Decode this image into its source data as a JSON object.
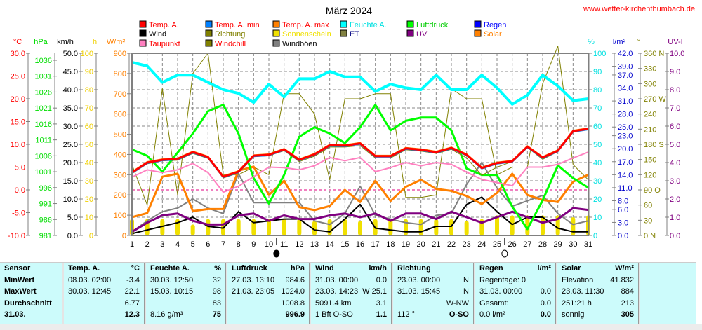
{
  "title": "März 2024",
  "site": "www.wetter-kirchenthumbach.de",
  "legend": [
    {
      "label": "Temp. A.",
      "color": "#ff0000",
      "text_color": "#ff0000"
    },
    {
      "label": "Temp. A. min",
      "color": "#0080ff",
      "text_color": "#ff0000"
    },
    {
      "label": "Temp. A. max",
      "color": "#ff8000",
      "text_color": "#ff0000"
    },
    {
      "label": "Feuchte A.",
      "color": "#00ffff",
      "text_color": "#00e0e0"
    },
    {
      "label": "Luftdruck",
      "color": "#00ff00",
      "text_color": "#00cc00"
    },
    {
      "label": "Regen",
      "color": "#0000ff",
      "text_color": "#0000ff"
    },
    {
      "label": "Wind",
      "color": "#000000",
      "text_color": "#000000"
    },
    {
      "label": "Richtung",
      "color": "#808000",
      "text_color": "#808000"
    },
    {
      "label": "Sonnenschein",
      "color": "#f0e000",
      "text_color": "#f0e000"
    },
    {
      "label": "ET",
      "color": "#808040",
      "text_color": "#000080"
    },
    {
      "label": "UV",
      "color": "#800080",
      "text_color": "#800080"
    },
    {
      "label": "Solar",
      "color": "#ff8000",
      "text_color": "#ff8000"
    },
    {
      "label": "Taupunkt",
      "color": "#ff80c0",
      "text_color": "#ff0000"
    },
    {
      "label": "Windchill",
      "color": "#808000",
      "text_color": "#ff0000"
    },
    {
      "label": "Windböen",
      "color": "#808080",
      "text_color": "#000000"
    }
  ],
  "axes": {
    "left": [
      {
        "unit": "°C",
        "color": "#ff0000",
        "ticks": [
          "30.0",
          "25.0",
          "20.0",
          "15.0",
          "10.0",
          "5.0",
          "0.0",
          "-5.0",
          "-10.0"
        ]
      },
      {
        "unit": "hPa",
        "color": "#00dd00",
        "ticks": [
          "1036",
          "1031",
          "1026",
          "1021",
          "1016",
          "1011",
          "1006",
          "1001",
          "996",
          "991",
          "986",
          "981"
        ]
      },
      {
        "unit": "km/h",
        "color": "#000000",
        "ticks": [
          "50.0",
          "45.0",
          "40.0",
          "35.0",
          "30.0",
          "25.0",
          "20.0",
          "15.0",
          "10.0",
          "5.0",
          "0.0"
        ]
      },
      {
        "unit": "h",
        "color": "#f0d000",
        "ticks": [
          "100",
          "90",
          "80",
          "70",
          "60",
          "50",
          "40",
          "30",
          "20",
          "10",
          "0"
        ]
      },
      {
        "unit": "W/m²",
        "color": "#ff8000",
        "ticks": [
          "900",
          "800",
          "700",
          "600",
          "500",
          "400",
          "300",
          "200",
          "100",
          "0"
        ]
      }
    ],
    "right": [
      {
        "unit": "%",
        "color": "#00e0e0",
        "ticks": [
          "100",
          "90",
          "80",
          "70",
          "60",
          "50",
          "40",
          "30",
          "20",
          "10",
          "0"
        ]
      },
      {
        "unit": "l/m²",
        "color": "#0000cc",
        "ticks": [
          "42.0",
          "39.0",
          "37.0",
          "34.0",
          "31.0",
          "28.0",
          "25.0",
          "23.0",
          "20.0",
          "17.0",
          "14.0",
          "11.0",
          "8.0",
          "6.0",
          "3.0",
          "0.0"
        ]
      },
      {
        "unit": "°",
        "color": "#808000",
        "ticks": [
          "360 N",
          "330",
          "300",
          "270 W",
          "240",
          "210",
          "180 S",
          "150",
          "120",
          "90  O",
          "60",
          "30",
          "0   N"
        ]
      },
      {
        "unit": "UV-I",
        "color": "#800080",
        "ticks": [
          "10.0",
          "9.0",
          "8.0",
          "7.0",
          "6.0",
          "5.0",
          "4.0",
          "3.0",
          "2.0",
          "1.0",
          "0.0"
        ]
      }
    ]
  },
  "chart_data": {
    "type": "line",
    "title": "März 2024",
    "x": [
      1,
      2,
      3,
      4,
      5,
      6,
      7,
      8,
      9,
      10,
      11,
      12,
      13,
      14,
      15,
      16,
      17,
      18,
      19,
      20,
      21,
      22,
      23,
      24,
      25,
      26,
      27,
      28,
      29,
      30,
      31
    ],
    "xlim": [
      1,
      31
    ],
    "grid": true,
    "moon_phases": [
      {
        "day": 10.5,
        "phase": "new"
      },
      {
        "day": 25.5,
        "phase": "full"
      }
    ],
    "series": [
      {
        "name": "Temp. A.",
        "unit": "°C",
        "color": "#ff0000",
        "width": 3,
        "values": [
          3.8,
          6.0,
          6.6,
          6.8,
          8.3,
          7.2,
          2.9,
          4.0,
          7.5,
          7.7,
          8.9,
          6.6,
          7.8,
          9.8,
          9.7,
          10.2,
          7.4,
          7.4,
          9.1,
          8.8,
          8.3,
          9.2,
          7.7,
          4.8,
          5.9,
          6.3,
          9.5,
          7.1,
          8.6,
          12.9,
          13.4
        ]
      },
      {
        "name": "Taupunkt",
        "unit": "°C",
        "color": "#ff80c0",
        "width": 2,
        "values": [
          2.8,
          4.4,
          3.8,
          4.4,
          5.8,
          3.8,
          -0.5,
          0.8,
          2.9,
          5.0,
          4.9,
          4.4,
          5.3,
          7.1,
          6.4,
          7.1,
          4.0,
          4.9,
          6.0,
          5.3,
          6.0,
          5.6,
          3.9,
          2.3,
          1.6,
          0.9,
          5.0,
          5.0,
          5.6,
          7.0,
          8.3
        ]
      },
      {
        "name": "Windchill",
        "unit": "°C",
        "color": "#808000",
        "width": 1,
        "values": [
          3.6,
          5.7,
          6.4,
          6.5,
          8.0,
          6.9,
          2.6,
          3.7,
          7.3,
          7.5,
          8.6,
          6.2,
          7.4,
          9.4,
          9.4,
          9.7,
          7.0,
          7.0,
          8.8,
          8.5,
          8.0,
          8.9,
          7.0,
          3.2,
          5.0,
          6.2,
          9.3,
          6.7,
          8.4,
          12.7,
          13.2
        ]
      },
      {
        "name": "Feuchte A.",
        "unit": "%",
        "color": "#00ffff",
        "width": 4,
        "values": [
          95,
          93,
          84,
          88,
          88,
          84,
          80,
          78,
          73,
          83,
          76,
          86,
          86,
          90,
          87,
          87,
          79,
          83,
          81,
          80,
          88,
          80,
          80,
          88,
          81,
          72,
          77,
          88,
          82,
          74,
          75
        ]
      },
      {
        "name": "Luftdruck",
        "unit": "hPa",
        "color": "#00ff00",
        "width": 3,
        "values": [
          1008,
          1006,
          1001,
          1007,
          1013,
          1020,
          1022,
          1013,
          999,
          991,
          1000,
          1012,
          1015,
          1013,
          1010,
          1015,
          1022,
          1014,
          1017,
          1018,
          1018,
          1014,
          1002,
          1000,
          1000,
          990,
          983,
          992,
          1003,
          999,
          996
        ]
      },
      {
        "name": "Solar",
        "unit": "W/m²",
        "color": "#ff8000",
        "width": 3,
        "values": [
          90,
          110,
          290,
          305,
          120,
          130,
          130,
          320,
          340,
          200,
          270,
          140,
          125,
          145,
          225,
          165,
          270,
          170,
          240,
          275,
          230,
          220,
          195,
          155,
          210,
          305,
          200,
          175,
          165,
          265,
          300
        ]
      },
      {
        "name": "Windböen",
        "unit": "km/h",
        "color": "#808080",
        "width": 2,
        "values": [
          1,
          4.0,
          6.5,
          7.5,
          10.0,
          7.5,
          6.0,
          17.0,
          9.0,
          9.0,
          9.0,
          9.0,
          4.0,
          3.0,
          6.0,
          13.5,
          5.5,
          4.5,
          3.5,
          3.0,
          5.5,
          6.0,
          14.0,
          20.0,
          13.0,
          8.0,
          9.5,
          11.0,
          6.0,
          3.0,
          4.0
        ]
      },
      {
        "name": "Wind",
        "unit": "km/h",
        "color": "#000000",
        "width": 2,
        "values": [
          0.5,
          1.5,
          2.5,
          3.5,
          5.0,
          2.5,
          2.0,
          6.5,
          3.5,
          4.0,
          4.5,
          4.5,
          1.5,
          1.0,
          4.5,
          8.5,
          2.0,
          1.5,
          1.0,
          1.0,
          2.5,
          2.5,
          8.5,
          10.5,
          6.5,
          3.0,
          5.0,
          5.0,
          2.0,
          1.0,
          1.0
        ]
      },
      {
        "name": "UV",
        "unit": "UV-I",
        "color": "#800080",
        "width": 3,
        "values": [
          0.2,
          0.7,
          1.1,
          1.2,
          0.8,
          0.6,
          0.6,
          1.1,
          1.2,
          0.8,
          1.1,
          0.9,
          0.9,
          1.1,
          1.2,
          1.0,
          1.2,
          0.8,
          1.2,
          1.2,
          0.9,
          1.3,
          1.0,
          0.7,
          1.0,
          1.3,
          1.0,
          0.7,
          0.9,
          1.5,
          1.4
        ]
      },
      {
        "name": "Richtung",
        "unit": "°",
        "color": "#808000",
        "width": 1,
        "values": [
          140,
          60,
          290,
          80,
          320,
          360,
          120,
          120,
          135,
          120,
          280,
          280,
          240,
          110,
          270,
          270,
          280,
          280,
          75,
          75,
          80,
          290,
          270,
          270,
          120,
          135,
          135,
          300,
          380,
          140,
          110
        ]
      }
    ],
    "bars": {
      "name": "Sonnenschein",
      "unit": "h",
      "color": "#f0e000",
      "values": [
        9,
        9,
        9,
        9,
        6,
        9,
        9,
        9,
        9,
        9,
        9,
        9,
        8,
        9,
        9,
        8,
        9,
        9,
        9,
        9,
        9,
        9,
        8,
        9,
        11,
        11,
        11,
        11,
        11,
        10,
        11
      ]
    },
    "threshold_line": {
      "value_celsius": 0,
      "color": "#e00080",
      "style": "dashed"
    }
  },
  "stats": {
    "sensor": {
      "header": "Sensor",
      "rows": [
        "MinWert",
        "MaxWert",
        "Durchschnitt",
        "31.03."
      ]
    },
    "temp": {
      "header": "Temp. A.",
      "unit": "°C",
      "rows": [
        [
          "08.03.  02:00",
          "-3.4"
        ],
        [
          "30.03.  12:45",
          "22.1"
        ],
        [
          "",
          "6.77"
        ],
        [
          "",
          "12.3"
        ]
      ]
    },
    "feuchte": {
      "header": "Feuchte A.",
      "unit": "%",
      "rows": [
        [
          "30.03.  12:50",
          "32"
        ],
        [
          "15.03.  10:15",
          "98"
        ],
        [
          "",
          "83"
        ],
        [
          "8.16 g/m³",
          "75"
        ]
      ]
    },
    "luftdruck": {
      "header": "Luftdruck",
      "unit": "hPa",
      "rows": [
        [
          "27.03.  13:10",
          "984.6"
        ],
        [
          "21.03.  23:05",
          "1024.0"
        ],
        [
          "",
          "1008.8"
        ],
        [
          "",
          "996.9"
        ]
      ]
    },
    "wind": {
      "header": "Wind",
      "unit": "km/h",
      "rows": [
        [
          "31.03.  00:00",
          "0.0"
        ],
        [
          "23.03.  14:23",
          "W 25.1"
        ],
        [
          "5091.4 km",
          "3.1"
        ],
        [
          "1 Bft O-SO",
          "1.1"
        ]
      ]
    },
    "richtung": {
      "header": "Richtung",
      "unit": "",
      "rows": [
        [
          "23.03.  00:00",
          "N"
        ],
        [
          "31.03.  15:45",
          "N"
        ],
        [
          "",
          "W-NW"
        ],
        [
          "112 °",
          "O-SO"
        ]
      ]
    },
    "regen": {
      "header": "Regen",
      "unit": "l/m²",
      "rows": [
        [
          "Regentage: 0",
          ""
        ],
        [
          "31.03.  00:00",
          "0.0"
        ],
        [
          "Gesamt:",
          "0.0"
        ],
        [
          "0.0 l/m²",
          "0.0"
        ]
      ]
    },
    "solar": {
      "header": "Solar",
      "unit": "W/m²",
      "rows": [
        [
          "Elevation",
          "41.832"
        ],
        [
          "23.03.  11:30",
          "884"
        ],
        [
          "251:21 h",
          "213"
        ],
        [
          "sonnig",
          "305"
        ]
      ]
    }
  }
}
